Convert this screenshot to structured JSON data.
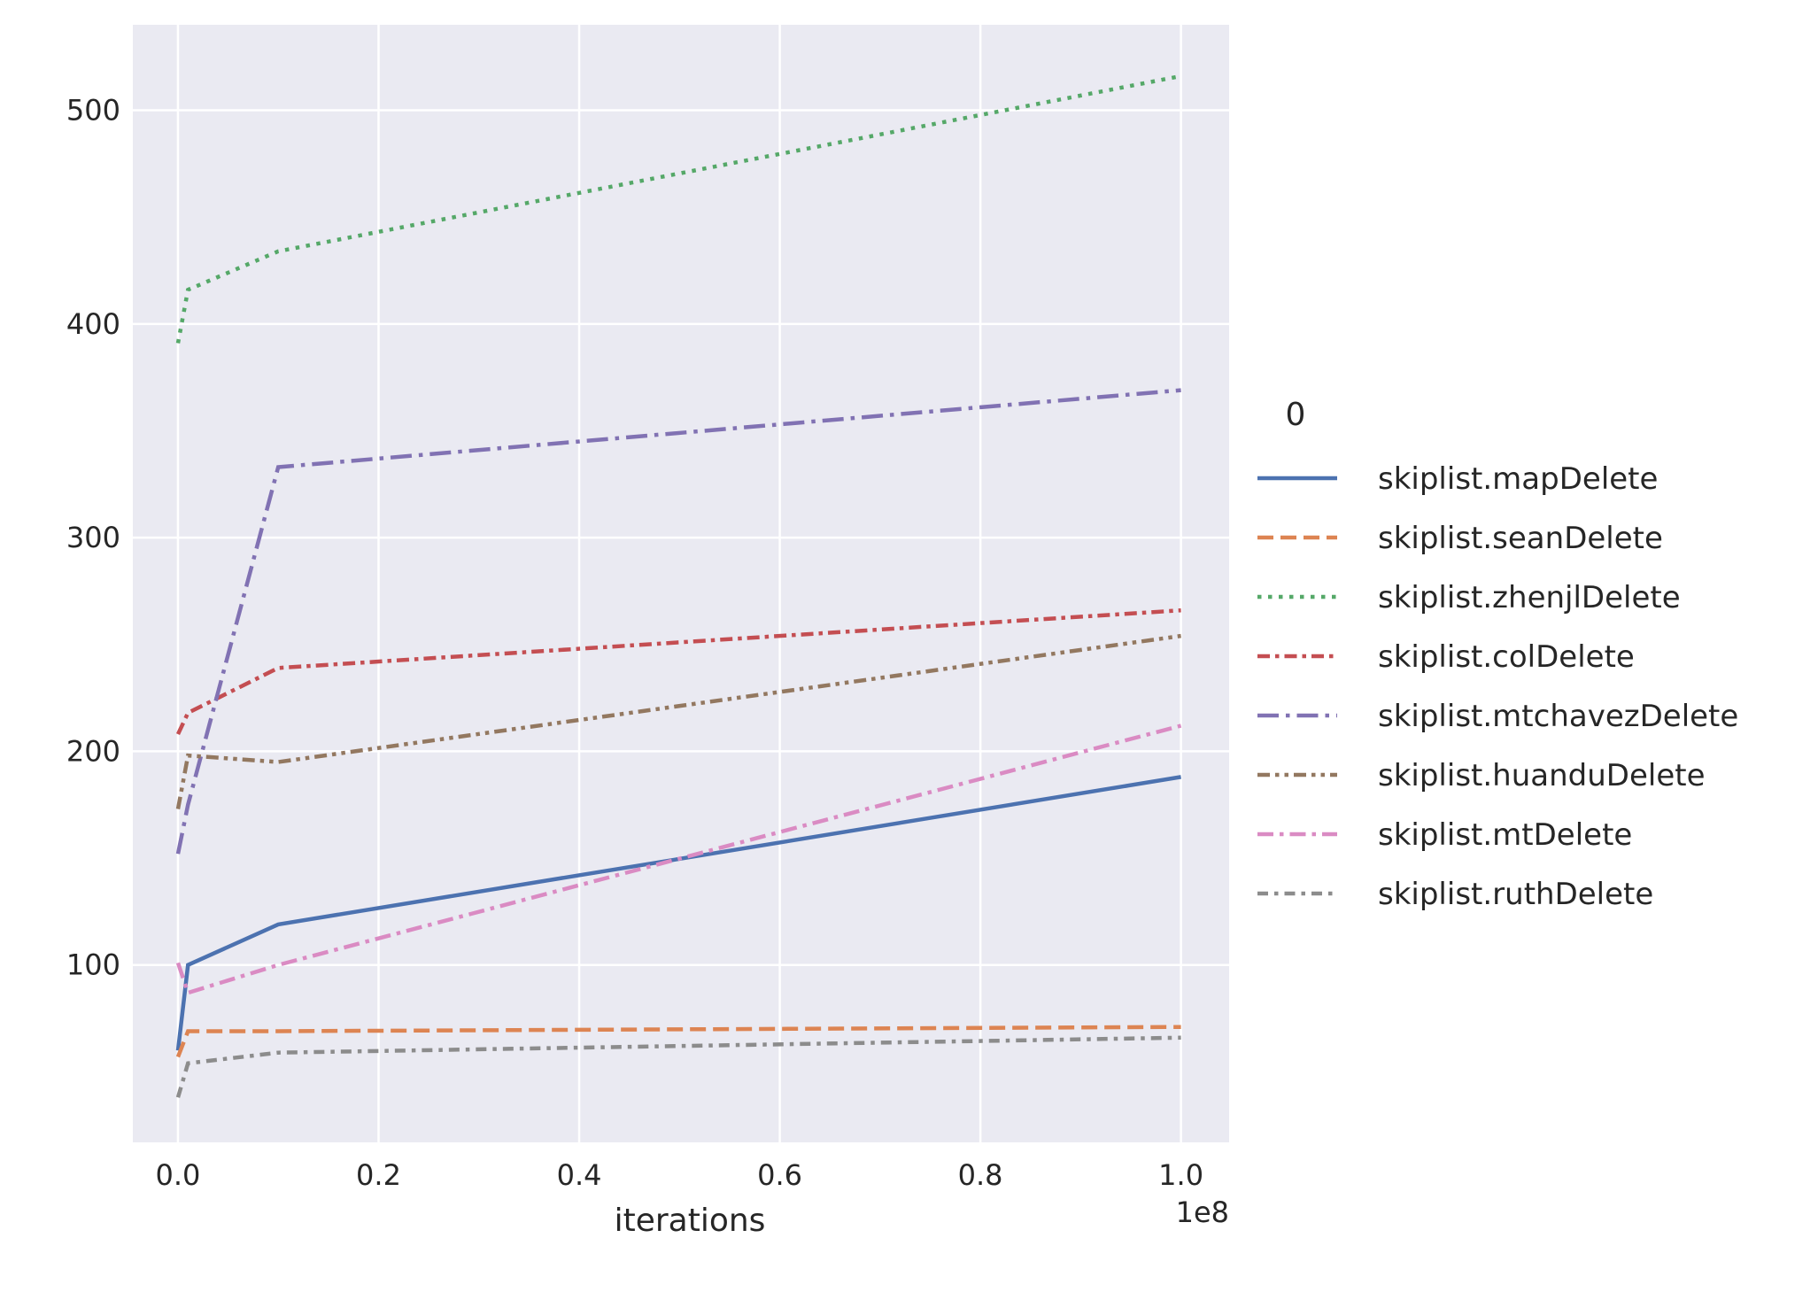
{
  "chart_data": {
    "type": "line",
    "xlabel": "iterations",
    "ylabel": "",
    "x_offset_label": "1e8",
    "x_ticks": [
      0.0,
      0.2,
      0.4,
      0.6,
      0.8,
      1.0
    ],
    "x_tick_labels": [
      "0.0",
      "0.2",
      "0.4",
      "0.6",
      "0.8",
      "1.0"
    ],
    "y_ticks": [
      100,
      200,
      300,
      400,
      500
    ],
    "y_tick_labels": [
      "100",
      "200",
      "300",
      "400",
      "500"
    ],
    "xlim": [
      -0.045,
      1.048
    ],
    "ylim": [
      17,
      540
    ],
    "grid": true,
    "legend": {
      "title": "0",
      "placement": "right"
    },
    "x": [
      0.0,
      0.01,
      0.1,
      1.0
    ],
    "series": [
      {
        "name": "skiplist.mapDelete",
        "color": "#4c72b0",
        "dash": "solid",
        "values": [
          60,
          100,
          119,
          188
        ]
      },
      {
        "name": "skiplist.seanDelete",
        "color": "#dd8452",
        "dash": "dashed",
        "values": [
          57,
          69,
          69,
          71
        ]
      },
      {
        "name": "skiplist.zhenjlDelete",
        "color": "#55a868",
        "dash": "dotted",
        "values": [
          391,
          416,
          434,
          516
        ]
      },
      {
        "name": "skiplist.colDelete",
        "color": "#c44e52",
        "dash": "dashdot",
        "values": [
          208,
          218,
          239,
          266
        ]
      },
      {
        "name": "skiplist.mtchavezDelete",
        "color": "#8172b3",
        "dash": "longdashdot",
        "values": [
          152,
          175,
          333,
          369
        ]
      },
      {
        "name": "skiplist.huanduDelete",
        "color": "#937860",
        "dash": "dashdotdot",
        "values": [
          173,
          198,
          195,
          254
        ]
      },
      {
        "name": "skiplist.mtDelete",
        "color": "#da8bc3",
        "dash": "dashdot2",
        "values": [
          101,
          87,
          100,
          212
        ]
      },
      {
        "name": "skiplist.ruthDelete",
        "color": "#8c8c8c",
        "dash": "dashdot3",
        "values": [
          38,
          54,
          59,
          66
        ]
      }
    ]
  }
}
